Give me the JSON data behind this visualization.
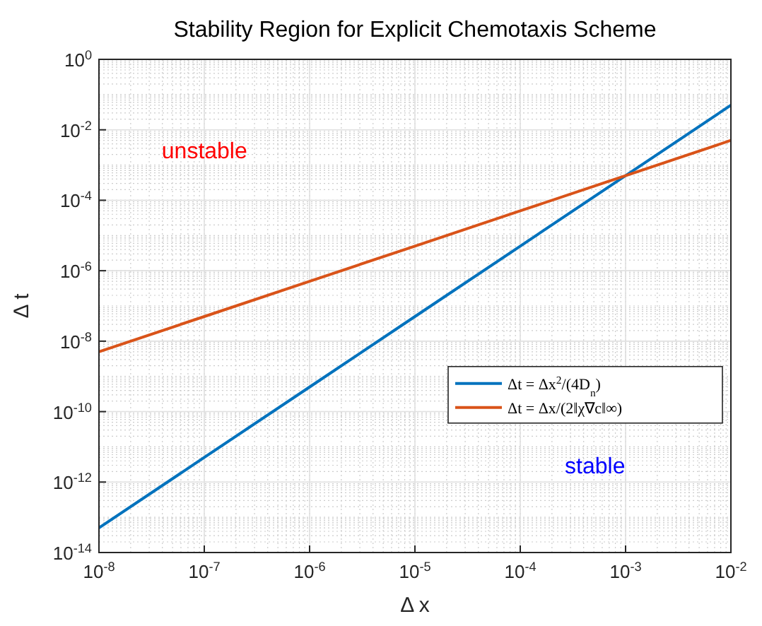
{
  "chart_data": {
    "type": "line",
    "title": "Stability Region for Explicit Chemotaxis Scheme",
    "xlabel": "Δ x",
    "ylabel": "Δ t",
    "log": "xy",
    "grid": true,
    "legend": "right",
    "line_style": "solid",
    "xlim": [
      1e-08,
      0.01
    ],
    "ylim": [
      1e-14,
      1
    ],
    "xticks": [
      {
        "value": 1e-08,
        "label": "10$^{-8}$"
      },
      {
        "value": 1e-07,
        "label": "10$^{-7}$"
      },
      {
        "value": 1e-06,
        "label": "10$^{-6}$"
      },
      {
        "value": 1e-05,
        "label": "10$^{-5}$"
      },
      {
        "value": 0.0001,
        "label": "10$^{-4}$"
      },
      {
        "value": 0.001,
        "label": "10$^{-3}$"
      },
      {
        "value": 0.01,
        "label": "10$^{-2}$"
      }
    ],
    "yticks": [
      {
        "value": 1e-14,
        "label": "10$^{-14}$"
      },
      {
        "value": 1e-12,
        "label": "10$^{-12}$"
      },
      {
        "value": 1e-10,
        "label": "10$^{-10}$"
      },
      {
        "value": 1e-08,
        "label": "10$^{-8}$"
      },
      {
        "value": 1e-06,
        "label": "10$^{-6}$"
      },
      {
        "value": 0.0001,
        "label": "10$^{-4}$"
      },
      {
        "value": 0.01,
        "label": "10$^{-2}$"
      },
      {
        "value": 1,
        "label": "10$^{0}$"
      }
    ],
    "series": [
      {
        "name": "Δt = Δx$^{2}$/(4D$_{n}$)",
        "color": "#0072bd",
        "x": [
          1e-08,
          1e-07,
          1e-06,
          1e-05,
          0.0001,
          0.001,
          0.01
        ],
        "values": [
          5e-14,
          5e-12,
          5e-10,
          5e-08,
          5e-06,
          0.0005,
          0.05
        ]
      },
      {
        "name": "Δt = Δx/(2‖χ∇c‖∞)",
        "color": "#d95319",
        "x": [
          1e-08,
          1e-07,
          1e-06,
          1e-05,
          0.0001,
          0.001,
          0.01
        ],
        "values": [
          5e-09,
          5e-08,
          5e-07,
          5e-06,
          5e-05,
          0.0005,
          0.005
        ]
      }
    ],
    "annotations": [
      "unstable",
      "stable"
    ]
  }
}
